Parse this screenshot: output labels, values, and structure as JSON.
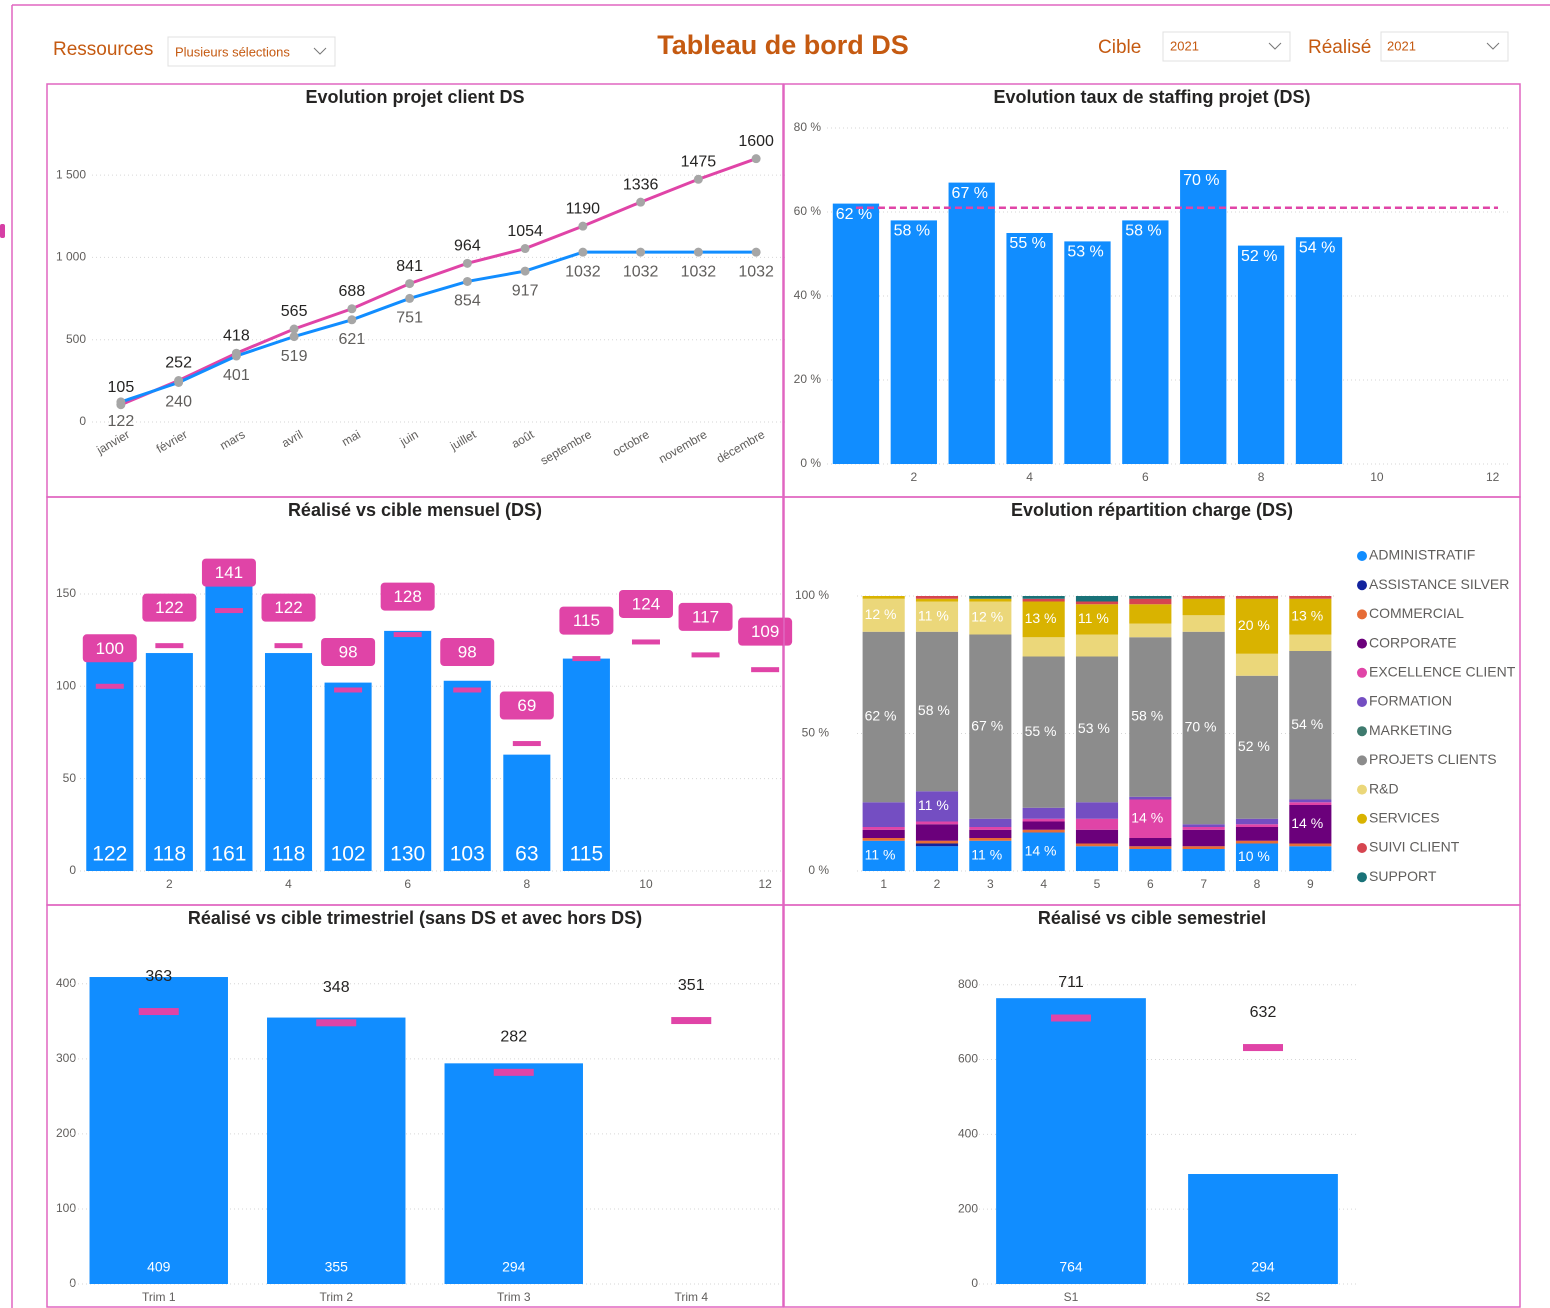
{
  "header": {
    "resources_label": "Ressources",
    "resources_value": "Plusieurs sélections",
    "title": "Tableau de bord DS",
    "cible_label": "Cible",
    "cible_value": "2021",
    "realise_label": "Réalisé",
    "realise_value": "2021"
  },
  "chart_data": [
    {
      "type": "line",
      "title": "Evolution projet client DS",
      "categories": [
        "janvier",
        "février",
        "mars",
        "avril",
        "mai",
        "juin",
        "juillet",
        "août",
        "septembre",
        "octobre",
        "novembre",
        "décembre"
      ],
      "series": [
        {
          "color": "#e044a7",
          "values": [
            105,
            252,
            418,
            565,
            688,
            841,
            964,
            1054,
            1190,
            1336,
            1475,
            1600
          ]
        },
        {
          "color": "#118dff",
          "values": [
            122,
            240,
            401,
            519,
            621,
            751,
            854,
            917,
            1032,
            1032,
            1032,
            1032
          ]
        }
      ],
      "ylim": [
        0,
        1750
      ],
      "yticks": [
        0,
        500,
        {
          "value": 1000,
          "label": "1 000"
        },
        {
          "value": 1500,
          "label": "1 500"
        }
      ],
      "grid": true,
      "marker_color": "#a6a6a6"
    },
    {
      "type": "bar",
      "title": "Evolution taux de staffing projet (DS)",
      "x": [
        1,
        2,
        3,
        4,
        5,
        6,
        7,
        8,
        9
      ],
      "values": [
        62,
        58,
        67,
        55,
        53,
        58,
        70,
        52,
        54
      ],
      "value_labels": [
        "62 %",
        "58 %",
        "67 %",
        "55 %",
        "53 %",
        "58 %",
        "70 %",
        "52 %",
        "54 %"
      ],
      "color": "#118dff",
      "xlim": [
        0.5,
        12.3
      ],
      "xticks": [
        2,
        4,
        6,
        8,
        10,
        12
      ],
      "ylim": [
        0,
        80
      ],
      "yticks": [
        {
          "value": 0,
          "label": "0 %"
        },
        {
          "value": 20,
          "label": "20 %"
        },
        {
          "value": 40,
          "label": "40 %"
        },
        {
          "value": 60,
          "label": "60 %"
        },
        {
          "value": 80,
          "label": "80 %"
        }
      ],
      "grid": true,
      "reference_line": 61,
      "reference_color": "#e044a7"
    },
    {
      "type": "combo",
      "title": "Réalisé vs cible mensuel (DS)",
      "x": [
        1,
        2,
        3,
        4,
        5,
        6,
        7,
        8,
        9,
        10,
        11,
        12
      ],
      "bars": {
        "color": "#118dff",
        "values": [
          122,
          118,
          161,
          118,
          102,
          130,
          103,
          63,
          115,
          null,
          null,
          null
        ]
      },
      "targets": {
        "color": "#e044a7",
        "values": [
          100,
          122,
          141,
          122,
          98,
          128,
          98,
          69,
          115,
          124,
          117,
          109
        ]
      },
      "xlim": [
        0.5,
        12.3
      ],
      "xticks": [
        2,
        4,
        6,
        8,
        10,
        12
      ],
      "ylim": [
        0,
        170
      ],
      "yticks": [
        0,
        50,
        100,
        150
      ],
      "grid": true,
      "target_labels_boxed": true
    },
    {
      "type": "stacked",
      "title": "Evolution répartition charge (DS)",
      "categories": [
        "1",
        "2",
        "3",
        "4",
        "5",
        "6",
        "7",
        "8",
        "9"
      ],
      "series": [
        {
          "name": "ADMINISTRATIF",
          "color": "#118dff",
          "values": [
            11,
            9,
            11,
            14,
            9,
            8,
            8,
            10,
            9
          ],
          "value_labels": [
            "11 %",
            null,
            "11 %",
            "14 %",
            null,
            null,
            null,
            "10 %",
            null
          ]
        },
        {
          "name": "ASSISTANCE SILVER",
          "color": "#12239e",
          "values": [
            0,
            1,
            0,
            0,
            0,
            0,
            0,
            0,
            0
          ]
        },
        {
          "name": "COMMERCIAL",
          "color": "#e66c37",
          "values": [
            1,
            1,
            1,
            1,
            1,
            1,
            1,
            1,
            1
          ]
        },
        {
          "name": "CORPORATE",
          "color": "#6b007b",
          "values": [
            3,
            6,
            3,
            3,
            5,
            3,
            6,
            5,
            14
          ],
          "value_labels": [
            null,
            null,
            null,
            null,
            null,
            null,
            null,
            null,
            "14 %"
          ]
        },
        {
          "name": "EXCELLENCE CLIENT",
          "color": "#e044a7",
          "values": [
            1,
            1,
            1,
            1,
            4,
            14,
            1,
            1,
            1
          ],
          "value_labels": [
            null,
            null,
            null,
            null,
            null,
            "14 %",
            null,
            null,
            null
          ]
        },
        {
          "name": "FORMATION",
          "color": "#744ec2",
          "values": [
            9,
            11,
            3,
            4,
            6,
            1,
            1,
            2,
            1
          ],
          "value_labels": [
            null,
            "11 %",
            null,
            null,
            null,
            null,
            null,
            null,
            null
          ]
        },
        {
          "name": "MARKETING",
          "color": "#3e7a6e",
          "values": [
            0,
            0,
            0,
            0,
            0,
            0,
            0,
            0,
            0
          ]
        },
        {
          "name": "PROJETS CLIENTS",
          "color": "#8c8c8c",
          "values": [
            62,
            58,
            67,
            55,
            53,
            58,
            70,
            52,
            54
          ],
          "value_labels": [
            "62 %",
            "58 %",
            "67 %",
            "55 %",
            "53 %",
            "58 %",
            "70 %",
            "52 %",
            "54 %"
          ]
        },
        {
          "name": "R&D",
          "color": "#ebd77a",
          "values": [
            12,
            11,
            12,
            7,
            8,
            5,
            6,
            8,
            6
          ],
          "value_labels": [
            "12 %",
            "11 %",
            "12 %",
            null,
            null,
            null,
            null,
            null,
            null
          ]
        },
        {
          "name": "SERVICES",
          "color": "#d9b300",
          "values": [
            1,
            1,
            1,
            13,
            11,
            7,
            6,
            20,
            13
          ],
          "value_labels": [
            null,
            null,
            null,
            "13 %",
            "11 %",
            null,
            null,
            "20 %",
            "13 %"
          ]
        },
        {
          "name": "SUIVI CLIENT",
          "color": "#d64550",
          "values": [
            0,
            1,
            0,
            1,
            1,
            2,
            1,
            1,
            1
          ]
        },
        {
          "name": "SUPPORT",
          "color": "#197278",
          "values": [
            0,
            0,
            1,
            1,
            2,
            1,
            0,
            0,
            0
          ]
        }
      ],
      "ylim": [
        0,
        100
      ],
      "yticks": [
        {
          "value": 0,
          "label": "0 %"
        },
        {
          "value": 50,
          "label": "50 %"
        },
        {
          "value": 100,
          "label": "100 %"
        }
      ],
      "grid": true
    },
    {
      "type": "combo",
      "title": "Réalisé vs cible trimestriel (sans DS et avec hors DS)",
      "categories": [
        "Trim 1",
        "Trim 2",
        "Trim 3",
        "Trim 4"
      ],
      "bars": {
        "color": "#118dff",
        "values": [
          409,
          355,
          294,
          null
        ]
      },
      "targets": {
        "color": "#e044a7",
        "values": [
          363,
          348,
          282,
          351
        ]
      },
      "ylim": [
        0,
        445
      ],
      "yticks": [
        0,
        100,
        200,
        300,
        400
      ],
      "grid": true
    },
    {
      "type": "combo",
      "title": "Réalisé vs cible semestriel",
      "categories": [
        "S1",
        "S2"
      ],
      "bars": {
        "color": "#118dff",
        "values": [
          764,
          294
        ]
      },
      "targets": {
        "color": "#e044a7",
        "values": [
          711,
          632
        ]
      },
      "ylim": [
        0,
        850
      ],
      "yticks": [
        0,
        200,
        400,
        600,
        800
      ],
      "grid": true
    }
  ]
}
